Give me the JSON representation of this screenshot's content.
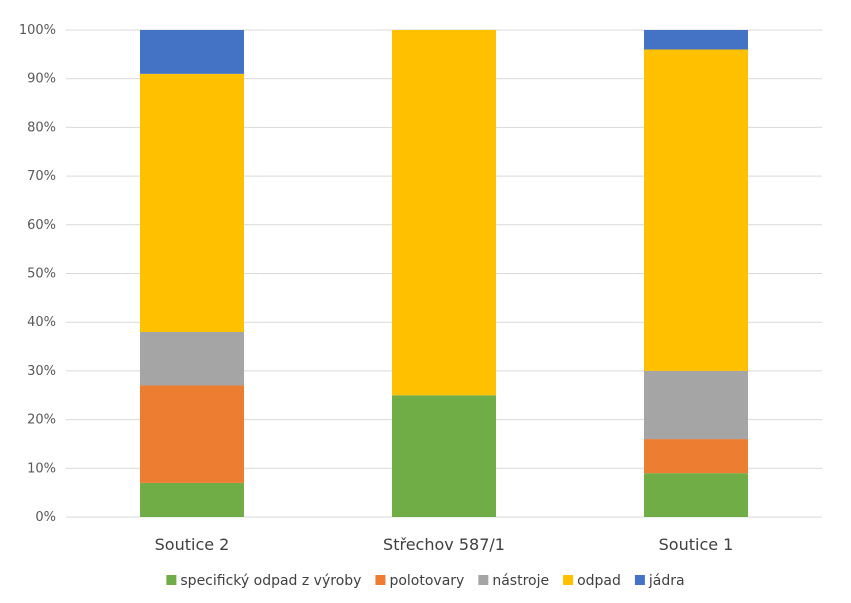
{
  "chart_data": {
    "type": "bar",
    "stacked": true,
    "title": "",
    "xlabel": "",
    "ylabel": "",
    "ylim": [
      0,
      100
    ],
    "y_ticks": [
      "0%",
      "10%",
      "20%",
      "30%",
      "40%",
      "50%",
      "60%",
      "70%",
      "80%",
      "90%",
      "100%"
    ],
    "grid": true,
    "legend_position": "bottom",
    "categories": [
      "Soutice 2",
      "Střechov 587/1",
      "Soutice 1"
    ],
    "series": [
      {
        "name": "specifický odpad z výroby",
        "color": "#70ad47",
        "values": [
          7,
          25,
          9
        ]
      },
      {
        "name": "polotovary",
        "color": "#ed7d31",
        "values": [
          20,
          0,
          7
        ]
      },
      {
        "name": "nástroje",
        "color": "#a5a5a5",
        "values": [
          11,
          0,
          14
        ]
      },
      {
        "name": "odpad",
        "color": "#ffc000",
        "values": [
          53,
          75,
          66
        ]
      },
      {
        "name": "jádra",
        "color": "#4472c4",
        "values": [
          9,
          0,
          4
        ]
      }
    ]
  }
}
